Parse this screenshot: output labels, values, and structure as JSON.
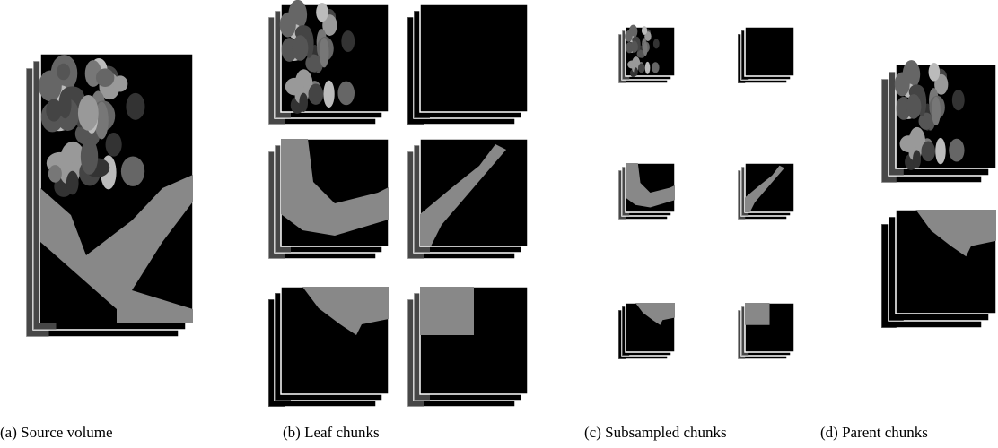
{
  "figure": {
    "captions": [
      "(a) Source volume",
      "(b) Leaf chunks",
      "(c) Subsampled chunks",
      "(d) Parent chunks"
    ]
  }
}
